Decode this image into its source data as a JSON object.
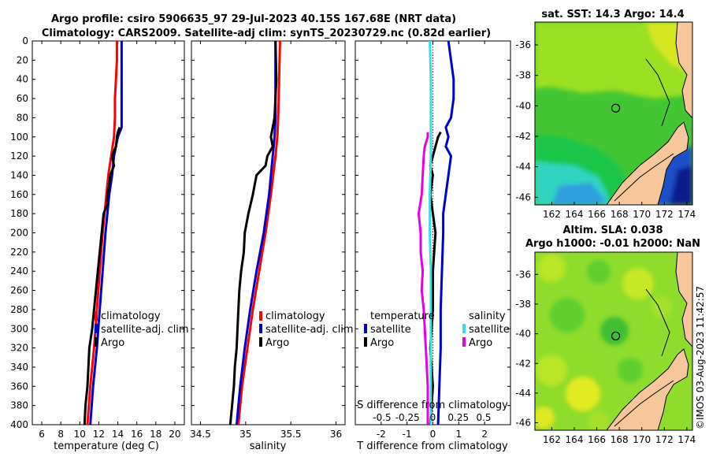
{
  "header": {
    "line1": "Argo profile: csiro 5906635_97 29-Jul-2023 40.15S 167.68E (NRT data)",
    "line2": "Climatology: CARS2009. Satellite-adj clim: synTS_20230729.nc (0.82d earlier)"
  },
  "colors": {
    "argo": "#000000",
    "climatology": "#ff0000",
    "satellite": "#0000cc",
    "satellite_s": "#33e0e6",
    "argo_s": "#e600e6",
    "land": "#f7c79b"
  },
  "chart_data": [
    {
      "id": "temperature",
      "type": "line",
      "xlabel": "temperature (deg C)",
      "ylabel": "",
      "xlim": [
        5,
        21
      ],
      "ylim": [
        400,
        0
      ],
      "xticks": [
        "6",
        "8",
        "10",
        "12",
        "14",
        "16",
        "18",
        "20"
      ],
      "yticks": [
        "0",
        "20",
        "40",
        "60",
        "80",
        "100",
        "120",
        "140",
        "160",
        "180",
        "200",
        "220",
        "240",
        "260",
        "280",
        "300",
        "320",
        "340",
        "360",
        "380",
        "400"
      ],
      "legend": [
        "climatology",
        "satellite-adj. clim",
        "Argo"
      ],
      "series": [
        {
          "name": "climatology",
          "color": "#ff0000",
          "depth": [
            0,
            20,
            40,
            60,
            80,
            100,
            120,
            140,
            160,
            180,
            200,
            240,
            280,
            320,
            360,
            400
          ],
          "values": [
            13.9,
            13.9,
            13.8,
            13.7,
            13.7,
            13.6,
            13.3,
            13.0,
            12.8,
            12.6,
            12.4,
            12.1,
            11.8,
            11.5,
            11.1,
            10.8
          ]
        },
        {
          "name": "satellite-adj. clim",
          "color": "#0000cc",
          "depth": [
            0,
            20,
            40,
            60,
            80,
            90,
            100,
            120,
            140,
            160,
            180,
            200,
            240,
            280,
            320,
            360,
            400
          ],
          "values": [
            14.4,
            14.4,
            14.4,
            14.4,
            14.4,
            14.4,
            14.0,
            13.6,
            13.4,
            13.1,
            12.9,
            12.7,
            12.4,
            12.1,
            11.8,
            11.4,
            11.1
          ]
        },
        {
          "name": "Argo",
          "color": "#000000",
          "depth": [
            90,
            95,
            100,
            110,
            120,
            130,
            140,
            150,
            160,
            170,
            180,
            190,
            200,
            220,
            240,
            260,
            280,
            300,
            320,
            340,
            360,
            380,
            400
          ],
          "values": [
            14.2,
            14.0,
            13.9,
            13.8,
            13.4,
            13.6,
            13.2,
            13.1,
            12.9,
            12.9,
            12.5,
            12.4,
            12.3,
            12.1,
            11.9,
            11.7,
            11.5,
            11.3,
            11.0,
            10.9,
            10.8,
            10.6,
            10.5
          ]
        }
      ]
    },
    {
      "id": "salinity",
      "type": "line",
      "xlabel": "salinity",
      "xlim": [
        34.4,
        36.1
      ],
      "ylim": [
        400,
        0
      ],
      "xticks": [
        "34.5",
        "35",
        "35.5",
        "36"
      ],
      "legend": [
        "climatology",
        "satellite-adj. clim",
        "Argo"
      ],
      "series": [
        {
          "name": "climatology",
          "color": "#ff0000",
          "depth": [
            0,
            40,
            80,
            100,
            120,
            160,
            200,
            240,
            280,
            320,
            360,
            400
          ],
          "values": [
            35.38,
            35.37,
            35.36,
            35.35,
            35.33,
            35.28,
            35.22,
            35.15,
            35.08,
            35.02,
            34.96,
            34.92
          ]
        },
        {
          "name": "satellite-adj. clim",
          "color": "#0000cc",
          "depth": [
            0,
            40,
            80,
            100,
            120,
            160,
            200,
            240,
            280,
            320,
            360,
            400
          ],
          "values": [
            35.33,
            35.33,
            35.33,
            35.32,
            35.3,
            35.26,
            35.2,
            35.12,
            35.05,
            34.99,
            34.94,
            34.9
          ]
        },
        {
          "name": "Argo",
          "color": "#000000",
          "depth": [
            0,
            40,
            80,
            100,
            110,
            120,
            130,
            140,
            160,
            180,
            200,
            220,
            240,
            260,
            280,
            300,
            320,
            340,
            360,
            380,
            400
          ],
          "values": [
            35.33,
            35.34,
            35.32,
            35.28,
            35.3,
            35.24,
            35.22,
            35.12,
            35.08,
            35.03,
            34.99,
            34.98,
            34.95,
            34.93,
            34.92,
            34.91,
            34.9,
            34.88,
            34.87,
            34.85,
            34.83
          ]
        }
      ]
    },
    {
      "id": "difference",
      "type": "line",
      "xlabel": "T difference from climatology",
      "xlabel_top": "S difference from climatology",
      "xlim": [
        -3,
        3
      ],
      "ylim": [
        400,
        0
      ],
      "xticks": [
        "-2",
        "-1",
        "0",
        "1",
        "2"
      ],
      "xticks_top": [
        "-0.5",
        "-0.25",
        "0",
        "0.25",
        "0.5"
      ],
      "legend_t_title": "temperature",
      "legend_s_title": "salinity",
      "legend_t": [
        "satellite",
        "Argo"
      ],
      "legend_s": [
        "satellite",
        "Argo"
      ],
      "series": [
        {
          "name": "T satellite",
          "color": "#0000cc",
          "depth": [
            0,
            20,
            40,
            60,
            80,
            90,
            100,
            110,
            120,
            140,
            160,
            180,
            200,
            240,
            280,
            320,
            360,
            400
          ],
          "values": [
            0.6,
            0.7,
            0.8,
            0.8,
            0.7,
            0.5,
            0.6,
            0.5,
            0.7,
            0.6,
            0.5,
            0.4,
            0.4,
            0.35,
            0.3,
            0.3,
            0.25,
            0.2
          ]
        },
        {
          "name": "T Argo",
          "color": "#000000",
          "depth": [
            95,
            100,
            110,
            120,
            130,
            140,
            160,
            180,
            200,
            240,
            280,
            320,
            360,
            400
          ],
          "values": [
            0.3,
            0.2,
            0.1,
            0.0,
            -0.1,
            0.0,
            -0.1,
            0.0,
            0.1,
            0.0,
            0.0,
            -0.1,
            0.0,
            -0.1
          ]
        },
        {
          "name": "S satellite",
          "color": "#33e0e6",
          "depth": [
            0,
            40,
            80,
            100,
            120,
            160,
            200,
            240,
            280,
            320,
            360,
            400
          ],
          "values": [
            -0.03,
            -0.02,
            -0.02,
            -0.02,
            -0.02,
            -0.03,
            -0.03,
            -0.02,
            -0.02,
            -0.02,
            -0.02,
            -0.02
          ]
        },
        {
          "name": "S Argo",
          "color": "#e600e6",
          "depth": [
            95,
            100,
            110,
            120,
            140,
            160,
            180,
            200,
            220,
            240,
            260,
            280,
            300,
            320,
            340,
            360,
            380,
            400
          ],
          "values": [
            -0.05,
            -0.05,
            -0.08,
            -0.09,
            -0.1,
            -0.11,
            -0.14,
            -0.12,
            -0.12,
            -0.1,
            -0.11,
            -0.09,
            -0.08,
            -0.07,
            -0.06,
            -0.05,
            -0.05,
            -0.05
          ]
        }
      ]
    },
    {
      "id": "sst_map",
      "type": "heatmap",
      "title": "sat. SST: 14.3 Argo: 14.4",
      "xticks": [
        "162",
        "164",
        "166",
        "168",
        "170",
        "172",
        "174"
      ],
      "yticks": [
        "-36",
        "-38",
        "-40",
        "-42",
        "-44",
        "-46"
      ],
      "xlim": [
        160.5,
        174.5
      ],
      "ylim": [
        -46.5,
        -34.5
      ],
      "argo_position": [
        167.68,
        -40.15
      ]
    },
    {
      "id": "sla_map",
      "type": "heatmap",
      "title": "Altim. SLA: 0.038",
      "subtitle": "Argo h1000: -0.01 h2000: NaN",
      "xticks": [
        "162",
        "164",
        "166",
        "168",
        "170",
        "172",
        "174"
      ],
      "yticks": [
        "-36",
        "-38",
        "-40",
        "-42",
        "-44",
        "-46"
      ],
      "xlim": [
        160.5,
        174.5
      ],
      "ylim": [
        -46.5,
        -34.5
      ],
      "argo_position": [
        167.68,
        -40.15
      ]
    }
  ],
  "watermark": "©IMOS 03-Aug-2023 11:42:57"
}
